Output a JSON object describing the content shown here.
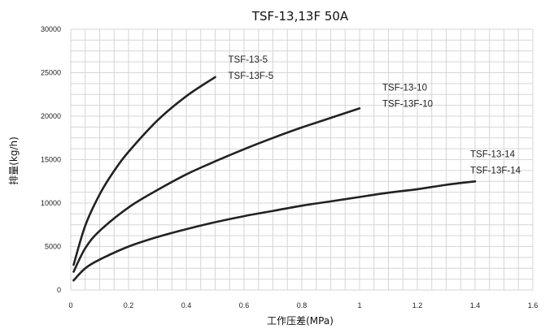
{
  "chart_data": {
    "type": "line",
    "title": "TSF-13,13F 50A",
    "xlabel": "工作压差(MPa)",
    "ylabel": "排量(kg/h)",
    "xlim": [
      0,
      1.6
    ],
    "ylim": [
      0,
      30000
    ],
    "x_ticks": [
      "0",
      "0.2",
      "0.4",
      "0.6",
      "0.8",
      "1",
      "1.2",
      "1.4",
      "1.6"
    ],
    "y_ticks": [
      "0",
      "5000",
      "10000",
      "15000",
      "20000",
      "25000",
      "30000"
    ],
    "grid": true,
    "series": [
      {
        "labels": [
          "TSF-13-5",
          "TSF-13F-5"
        ],
        "points": [
          [
            0.01,
            2900
          ],
          [
            0.05,
            7400
          ],
          [
            0.1,
            11000
          ],
          [
            0.15,
            13700
          ],
          [
            0.2,
            15900
          ],
          [
            0.3,
            19500
          ],
          [
            0.4,
            22300
          ],
          [
            0.5,
            24500
          ]
        ]
      },
      {
        "labels": [
          "TSF-13-10",
          "TSF-13F-10"
        ],
        "points": [
          [
            0.01,
            2100
          ],
          [
            0.05,
            4800
          ],
          [
            0.1,
            6800
          ],
          [
            0.2,
            9500
          ],
          [
            0.3,
            11500
          ],
          [
            0.4,
            13300
          ],
          [
            0.5,
            14800
          ],
          [
            0.6,
            16200
          ],
          [
            0.7,
            17500
          ],
          [
            0.8,
            18700
          ],
          [
            0.9,
            19800
          ],
          [
            1.0,
            20900
          ]
        ]
      },
      {
        "labels": [
          "TSF-13-14",
          "TSF-13F-14"
        ],
        "points": [
          [
            0.01,
            1100
          ],
          [
            0.05,
            2500
          ],
          [
            0.1,
            3500
          ],
          [
            0.2,
            5000
          ],
          [
            0.3,
            6100
          ],
          [
            0.4,
            7000
          ],
          [
            0.5,
            7800
          ],
          [
            0.6,
            8500
          ],
          [
            0.7,
            9100
          ],
          [
            0.8,
            9700
          ],
          [
            0.9,
            10200
          ],
          [
            1.0,
            10700
          ],
          [
            1.1,
            11200
          ],
          [
            1.2,
            11600
          ],
          [
            1.3,
            12100
          ],
          [
            1.4,
            12500
          ]
        ]
      }
    ]
  }
}
